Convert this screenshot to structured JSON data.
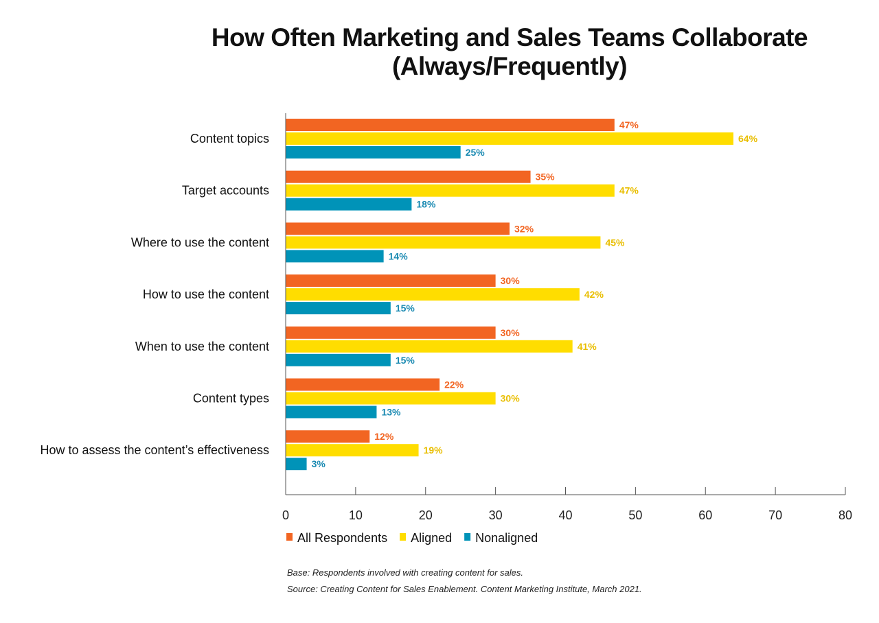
{
  "chart_data": {
    "type": "bar",
    "orientation": "horizontal",
    "title_line1": "How Often Marketing and Sales Teams Collaborate",
    "title_line2": "(Always/Frequently)",
    "categories": [
      "Content topics",
      "Target accounts",
      "Where to use the content",
      "How to use the content",
      "When to use the content",
      "Content types",
      "How to assess the content’s effectiveness"
    ],
    "series": [
      {
        "name": "All Respondents",
        "color": "#F26522",
        "label_color": "#F26522",
        "values": [
          47,
          35,
          32,
          30,
          30,
          22,
          12
        ]
      },
      {
        "name": "Aligned",
        "color": "#FFDD00",
        "label_color": "#E9BE00",
        "values": [
          64,
          47,
          45,
          42,
          41,
          30,
          19
        ]
      },
      {
        "name": "Nonaligned",
        "color": "#0093B8",
        "label_color": "#1A8AB2",
        "values": [
          25,
          18,
          14,
          15,
          15,
          13,
          3
        ]
      }
    ],
    "value_suffix": "%",
    "xlim": [
      0,
      80
    ],
    "xticks": [
      0,
      10,
      20,
      30,
      40,
      50,
      60,
      70,
      80
    ],
    "grid": false,
    "legend_position": "bottom-left"
  },
  "notes": {
    "base": "Base: Respondents involved with creating content for sales.",
    "source": "Source: Creating Content for Sales Enablement. Content Marketing Institute, March 2021."
  }
}
